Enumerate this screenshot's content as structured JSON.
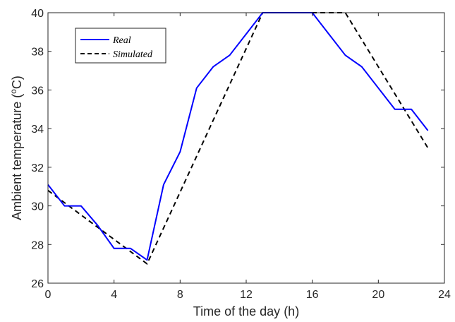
{
  "chart_data": {
    "type": "line",
    "xlabel": "Time of the day (h)",
    "ylabel_prefix": "Ambient temperature (",
    "ylabel_sup": "o",
    "ylabel_suffix": "C)",
    "xlim": [
      0,
      24
    ],
    "ylim": [
      26,
      40
    ],
    "xticks": [
      0,
      4,
      8,
      12,
      16,
      20,
      24
    ],
    "yticks": [
      26,
      28,
      30,
      32,
      34,
      36,
      38,
      40
    ],
    "grid": false,
    "legend_position": "top-left",
    "series": [
      {
        "name": "Real",
        "color": "#0000ff",
        "style": "solid",
        "points": [
          [
            0,
            31.1
          ],
          [
            1,
            30.0
          ],
          [
            2,
            30.0
          ],
          [
            3,
            29.0
          ],
          [
            4,
            27.8
          ],
          [
            5,
            27.8
          ],
          [
            6,
            27.2
          ],
          [
            7,
            31.1
          ],
          [
            8,
            32.8
          ],
          [
            9,
            36.1
          ],
          [
            10,
            37.2
          ],
          [
            11,
            37.8
          ],
          [
            12,
            38.9
          ],
          [
            13,
            40.0
          ],
          [
            14,
            40.0
          ],
          [
            15,
            40.0
          ],
          [
            16,
            40.0
          ],
          [
            17,
            38.9
          ],
          [
            18,
            37.8
          ],
          [
            19,
            37.2
          ],
          [
            20,
            36.1
          ],
          [
            21,
            35.0
          ],
          [
            22,
            35.0
          ],
          [
            23,
            33.9
          ]
        ]
      },
      {
        "name": "Simulated",
        "color": "#000000",
        "style": "dashed",
        "points": [
          [
            0,
            30.8
          ],
          [
            6,
            27.0
          ],
          [
            13,
            40.0
          ],
          [
            18,
            40.0
          ],
          [
            23,
            33.0
          ]
        ]
      }
    ]
  }
}
